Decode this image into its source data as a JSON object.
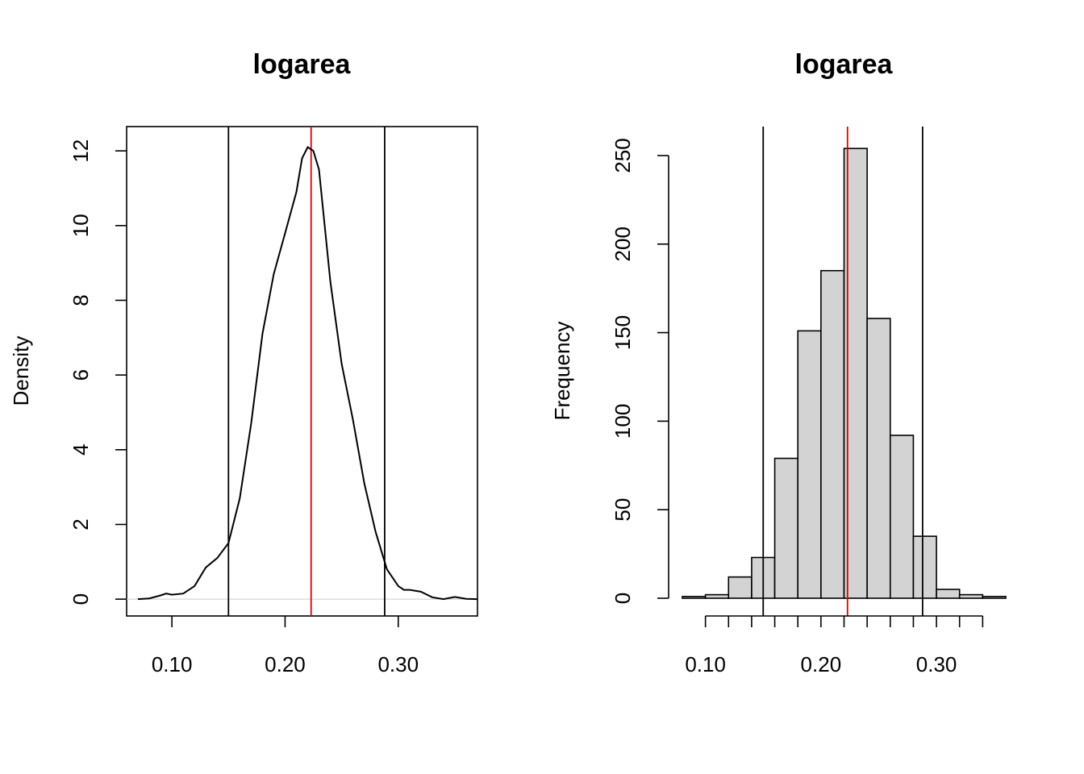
{
  "chart_data": [
    {
      "type": "line",
      "title": "logarea",
      "xlabel": "",
      "ylabel": "Density",
      "xlim": [
        0.06,
        0.37
      ],
      "ylim": [
        -0.45,
        12.65
      ],
      "x_ticks": [
        "0.10",
        "0.20",
        "0.30"
      ],
      "y_ticks": [
        "0",
        "2",
        "4",
        "6",
        "8",
        "10",
        "12"
      ],
      "vlines": [
        {
          "x": 0.15,
          "color": "#000000"
        },
        {
          "x": 0.223,
          "color": "#e00000"
        },
        {
          "x": 0.288,
          "color": "#000000"
        }
      ],
      "series": [
        {
          "x": [
            0.07,
            0.08,
            0.09,
            0.095,
            0.1,
            0.11,
            0.12,
            0.125,
            0.13,
            0.14,
            0.15,
            0.16,
            0.17,
            0.18,
            0.19,
            0.2,
            0.21,
            0.215,
            0.22,
            0.225,
            0.23,
            0.24,
            0.25,
            0.26,
            0.27,
            0.28,
            0.29,
            0.3,
            0.305,
            0.31,
            0.32,
            0.33,
            0.34,
            0.35,
            0.36,
            0.37
          ],
          "y": [
            0.0,
            0.02,
            0.1,
            0.15,
            0.12,
            0.15,
            0.35,
            0.6,
            0.85,
            1.1,
            1.5,
            2.7,
            4.7,
            7.1,
            8.7,
            9.8,
            10.9,
            11.8,
            12.1,
            12.0,
            11.5,
            8.5,
            6.3,
            4.8,
            3.1,
            1.8,
            0.8,
            0.35,
            0.25,
            0.25,
            0.2,
            0.05,
            0.0,
            0.06,
            0.01,
            0.0
          ]
        }
      ]
    },
    {
      "type": "bar",
      "title": "logarea",
      "xlabel": "",
      "ylabel": "Frequency",
      "xlim": [
        0.08,
        0.36
      ],
      "ylim": [
        0,
        265
      ],
      "x_ticks": [
        "0.10",
        "0.20",
        "0.30"
      ],
      "y_ticks": [
        "0",
        "50",
        "100",
        "150",
        "200",
        "250"
      ],
      "bin_edges": [
        0.08,
        0.1,
        0.12,
        0.14,
        0.16,
        0.18,
        0.2,
        0.22,
        0.24,
        0.26,
        0.28,
        0.3,
        0.32,
        0.34,
        0.36
      ],
      "values": [
        1,
        2,
        12,
        23,
        79,
        151,
        185,
        254,
        158,
        92,
        35,
        5,
        2,
        1
      ],
      "bar_color": "#d3d3d3",
      "vlines": [
        {
          "x": 0.15,
          "color": "#000000"
        },
        {
          "x": 0.223,
          "color": "#e00000"
        },
        {
          "x": 0.288,
          "color": "#000000"
        }
      ]
    }
  ]
}
